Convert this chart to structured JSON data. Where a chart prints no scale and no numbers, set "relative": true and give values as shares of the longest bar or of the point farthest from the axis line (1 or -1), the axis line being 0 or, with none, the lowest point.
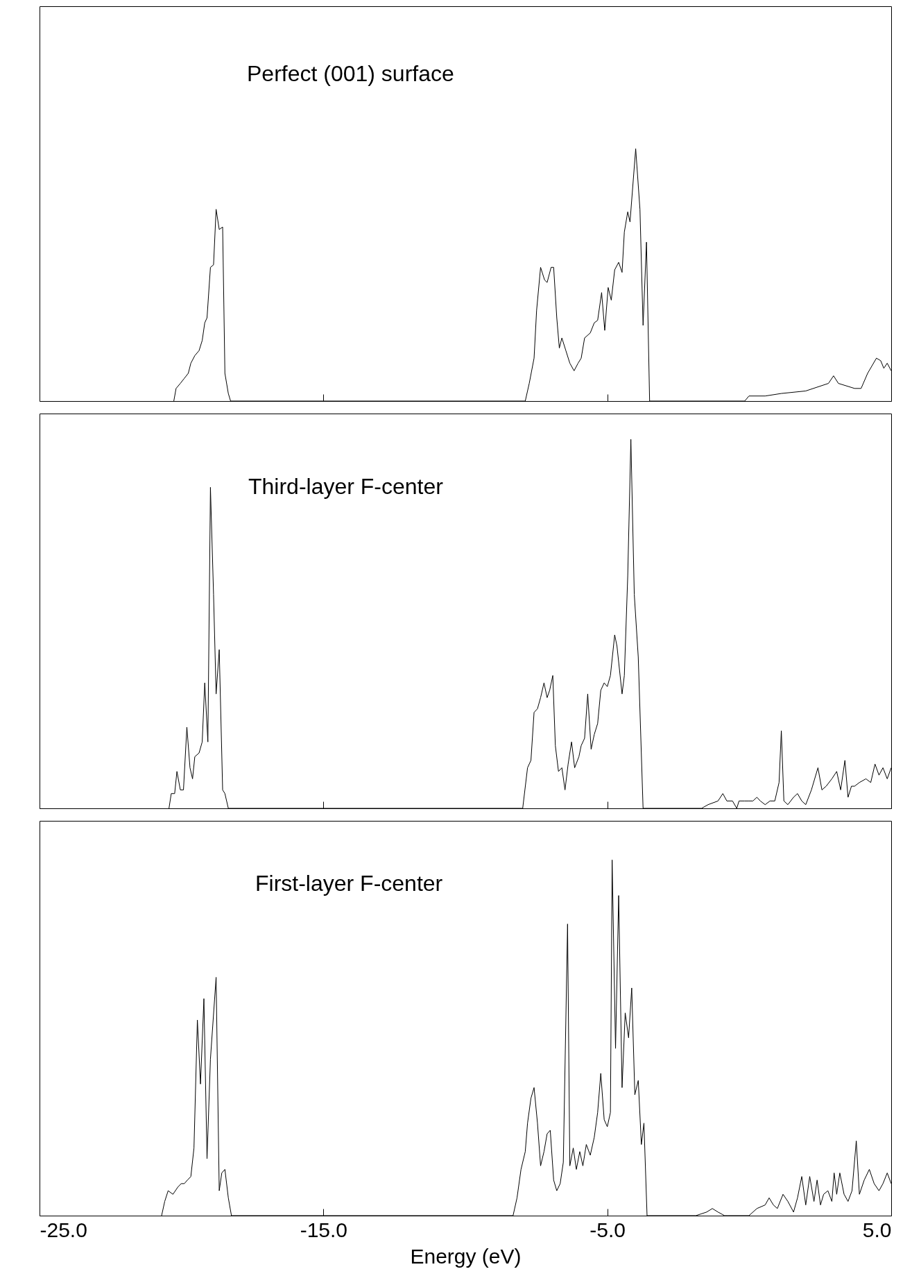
{
  "chart_data": [
    {
      "type": "line",
      "title": "Perfect (001) surface",
      "relative": true,
      "xlim": [
        -25,
        5
      ],
      "xticks": [
        {
          "value": -25,
          "label": null
        },
        {
          "value": -15,
          "label": null
        },
        {
          "value": -5,
          "label": null
        },
        {
          "value": 5,
          "label": null
        }
      ],
      "tick_labels": false,
      "x": [
        -20.27,
        -20.19,
        -20.04,
        -19.9,
        -19.76,
        -19.67,
        -19.53,
        -19.38,
        -19.27,
        -19.18,
        -19.1,
        -18.98,
        -18.87,
        -18.78,
        -18.67,
        -18.55,
        -18.47,
        -18.35,
        -18.27,
        -7.89,
        -7.75,
        -7.58,
        -7.49,
        -7.35,
        -7.21,
        -7.12,
        -6.98,
        -6.89,
        -6.78,
        -6.69,
        -6.6,
        -6.46,
        -6.32,
        -6.17,
        -6.03,
        -5.92,
        -5.8,
        -5.6,
        -5.46,
        -5.34,
        -5.2,
        -5.09,
        -4.97,
        -4.86,
        -4.74,
        -4.6,
        -4.48,
        -4.4,
        -4.28,
        -4.2,
        -4.0,
        -3.85,
        -3.74,
        -3.62,
        -3.51,
        -0.16,
        -0.01,
        0.56,
        1.13,
        1.99,
        2.79,
        2.97,
        3.14,
        3.71,
        3.94,
        4.17,
        4.48,
        4.63,
        4.74,
        4.86,
        5.0
      ],
      "series": [
        {
          "color": "#000000",
          "values": [
            0,
            0.05,
            0.07,
            0.09,
            0.11,
            0.15,
            0.18,
            0.2,
            0.24,
            0.31,
            0.33,
            0.53,
            0.54,
            0.76,
            0.68,
            0.69,
            0.11,
            0.03,
            0,
            0,
            0.07,
            0.17,
            0.36,
            0.53,
            0.48,
            0.47,
            0.53,
            0.53,
            0.33,
            0.21,
            0.25,
            0.2,
            0.15,
            0.12,
            0.15,
            0.17,
            0.25,
            0.27,
            0.31,
            0.32,
            0.43,
            0.28,
            0.45,
            0.4,
            0.52,
            0.55,
            0.51,
            0.67,
            0.75,
            0.71,
            1.0,
            0.76,
            0.3,
            0.63,
            0,
            0,
            0.02,
            0.02,
            0.03,
            0.04,
            0.07,
            0.1,
            0.07,
            0.05,
            0.05,
            0.11,
            0.17,
            0.16,
            0.13,
            0.15,
            0.12
          ]
        }
      ]
    },
    {
      "type": "line",
      "title": "Third-layer F-center",
      "relative": true,
      "xlim": [
        -25,
        5
      ],
      "xticks": [
        {
          "value": -25,
          "label": null
        },
        {
          "value": -15,
          "label": null
        },
        {
          "value": -5,
          "label": null
        },
        {
          "value": 5,
          "label": null
        }
      ],
      "tick_labels": false,
      "x": [
        -20.44,
        -20.36,
        -20.24,
        -20.16,
        -20.04,
        -19.93,
        -19.81,
        -19.7,
        -19.61,
        -19.53,
        -19.38,
        -19.27,
        -19.18,
        -19.07,
        -18.98,
        -18.87,
        -18.78,
        -18.67,
        -18.55,
        -18.47,
        -18.35,
        -7.98,
        -7.81,
        -7.69,
        -7.58,
        -7.46,
        -7.35,
        -7.23,
        -7.12,
        -7.03,
        -6.92,
        -6.83,
        -6.72,
        -6.6,
        -6.49,
        -6.38,
        -6.26,
        -6.15,
        -6.0,
        -5.92,
        -5.8,
        -5.69,
        -5.57,
        -5.46,
        -5.34,
        -5.23,
        -5.11,
        -5.0,
        -4.89,
        -4.74,
        -4.66,
        -4.48,
        -4.4,
        -4.28,
        -4.17,
        -4.05,
        -3.91,
        -3.74,
        -1.68,
        -1.45,
        -1.1,
        -0.93,
        -0.79,
        -0.59,
        -0.44,
        -0.36,
        -0.16,
        -0.01,
        0.13,
        0.27,
        0.39,
        0.56,
        0.73,
        0.9,
        1.05,
        1.13,
        1.22,
        1.36,
        1.56,
        1.7,
        1.85,
        1.99,
        2.19,
        2.42,
        2.56,
        2.71,
        2.91,
        3.08,
        3.22,
        3.37,
        3.48,
        3.6,
        3.71,
        3.88,
        4.11,
        4.28,
        4.43,
        4.57,
        4.71,
        4.86,
        5.0
      ],
      "series": [
        {
          "color": "#000000",
          "values": [
            0,
            0.04,
            0.04,
            0.1,
            0.05,
            0.05,
            0.22,
            0.11,
            0.08,
            0.14,
            0.15,
            0.18,
            0.34,
            0.18,
            0.87,
            0.58,
            0.31,
            0.43,
            0.05,
            0.04,
            0,
            0,
            0.11,
            0.13,
            0.26,
            0.27,
            0.3,
            0.34,
            0.3,
            0.32,
            0.36,
            0.17,
            0.1,
            0.11,
            0.05,
            0.12,
            0.18,
            0.11,
            0.14,
            0.17,
            0.19,
            0.31,
            0.16,
            0.2,
            0.23,
            0.32,
            0.34,
            0.33,
            0.36,
            0.47,
            0.44,
            0.31,
            0.36,
            0.63,
            1.0,
            0.58,
            0.41,
            0,
            0,
            0.01,
            0.02,
            0.04,
            0.02,
            0.02,
            0,
            0.02,
            0.02,
            0.02,
            0.02,
            0.03,
            0.02,
            0.01,
            0.02,
            0.02,
            0.07,
            0.21,
            0.02,
            0.01,
            0.03,
            0.04,
            0.02,
            0.01,
            0.05,
            0.11,
            0.05,
            0.06,
            0.08,
            0.1,
            0.05,
            0.13,
            0.03,
            0.06,
            0.06,
            0.07,
            0.08,
            0.07,
            0.12,
            0.09,
            0.11,
            0.08,
            0.11
          ]
        }
      ]
    },
    {
      "type": "line",
      "title": "First-layer F-center",
      "relative": true,
      "xlabel": "Energy (eV)",
      "xlim": [
        -25,
        5
      ],
      "xticks": [
        {
          "value": -25,
          "label": "-25.0"
        },
        {
          "value": -15,
          "label": "-15.0"
        },
        {
          "value": -5,
          "label": "-5.0"
        },
        {
          "value": 5,
          "label": "5.0"
        }
      ],
      "tick_labels": "x",
      "x": [
        -20.7,
        -20.59,
        -20.47,
        -20.3,
        -20.13,
        -20.01,
        -19.9,
        -19.79,
        -19.67,
        -19.56,
        -19.44,
        -19.33,
        -19.21,
        -19.1,
        -18.98,
        -18.78,
        -18.67,
        -18.58,
        -18.47,
        -18.35,
        -18.24,
        -8.32,
        -8.18,
        -8.04,
        -7.89,
        -7.81,
        -7.69,
        -7.58,
        -7.46,
        -7.35,
        -7.23,
        -7.12,
        -7.01,
        -6.89,
        -6.78,
        -6.66,
        -6.55,
        -6.4,
        -6.32,
        -6.2,
        -6.09,
        -5.97,
        -5.86,
        -5.74,
        -5.6,
        -5.46,
        -5.34,
        -5.23,
        -5.11,
        -5.0,
        -4.89,
        -4.83,
        -4.71,
        -4.6,
        -4.48,
        -4.37,
        -4.25,
        -4.14,
        -4.03,
        -3.91,
        -3.8,
        -3.71,
        -3.6,
        -1.88,
        -1.5,
        -1.3,
        -1.1,
        -0.87,
        -0.76,
        -0.01,
        0.27,
        0.56,
        0.7,
        0.85,
        0.99,
        1.19,
        1.36,
        1.56,
        1.7,
        1.85,
        1.99,
        2.13,
        2.28,
        2.39,
        2.51,
        2.62,
        2.77,
        2.91,
        2.99,
        3.08,
        3.19,
        3.34,
        3.48,
        3.62,
        3.77,
        3.88,
        4.05,
        4.23,
        4.4,
        4.57,
        4.71,
        4.86,
        5.0
      ],
      "series": [
        {
          "color": "#000000",
          "values": [
            0,
            0.04,
            0.07,
            0.06,
            0.08,
            0.09,
            0.09,
            0.1,
            0.11,
            0.19,
            0.55,
            0.37,
            0.61,
            0.16,
            0.44,
            0.67,
            0.07,
            0.12,
            0.13,
            0.05,
            0,
            0,
            0.05,
            0.13,
            0.18,
            0.26,
            0.33,
            0.36,
            0.26,
            0.14,
            0.18,
            0.23,
            0.24,
            0.1,
            0.07,
            0.09,
            0.15,
            0.82,
            0.14,
            0.19,
            0.13,
            0.18,
            0.14,
            0.2,
            0.17,
            0.22,
            0.29,
            0.4,
            0.27,
            0.25,
            0.29,
            1.0,
            0.47,
            0.9,
            0.36,
            0.57,
            0.5,
            0.64,
            0.34,
            0.38,
            0.2,
            0.26,
            0,
            0,
            0.01,
            0.02,
            0.01,
            0.0,
            0,
            0,
            0.02,
            0.03,
            0.05,
            0.03,
            0.02,
            0.06,
            0.04,
            0.01,
            0.05,
            0.11,
            0.03,
            0.11,
            0.04,
            0.1,
            0.03,
            0.06,
            0.07,
            0.04,
            0.12,
            0.06,
            0.12,
            0.06,
            0.04,
            0.07,
            0.21,
            0.06,
            0.1,
            0.13,
            0.09,
            0.07,
            0.09,
            0.12,
            0.09
          ]
        }
      ]
    }
  ]
}
